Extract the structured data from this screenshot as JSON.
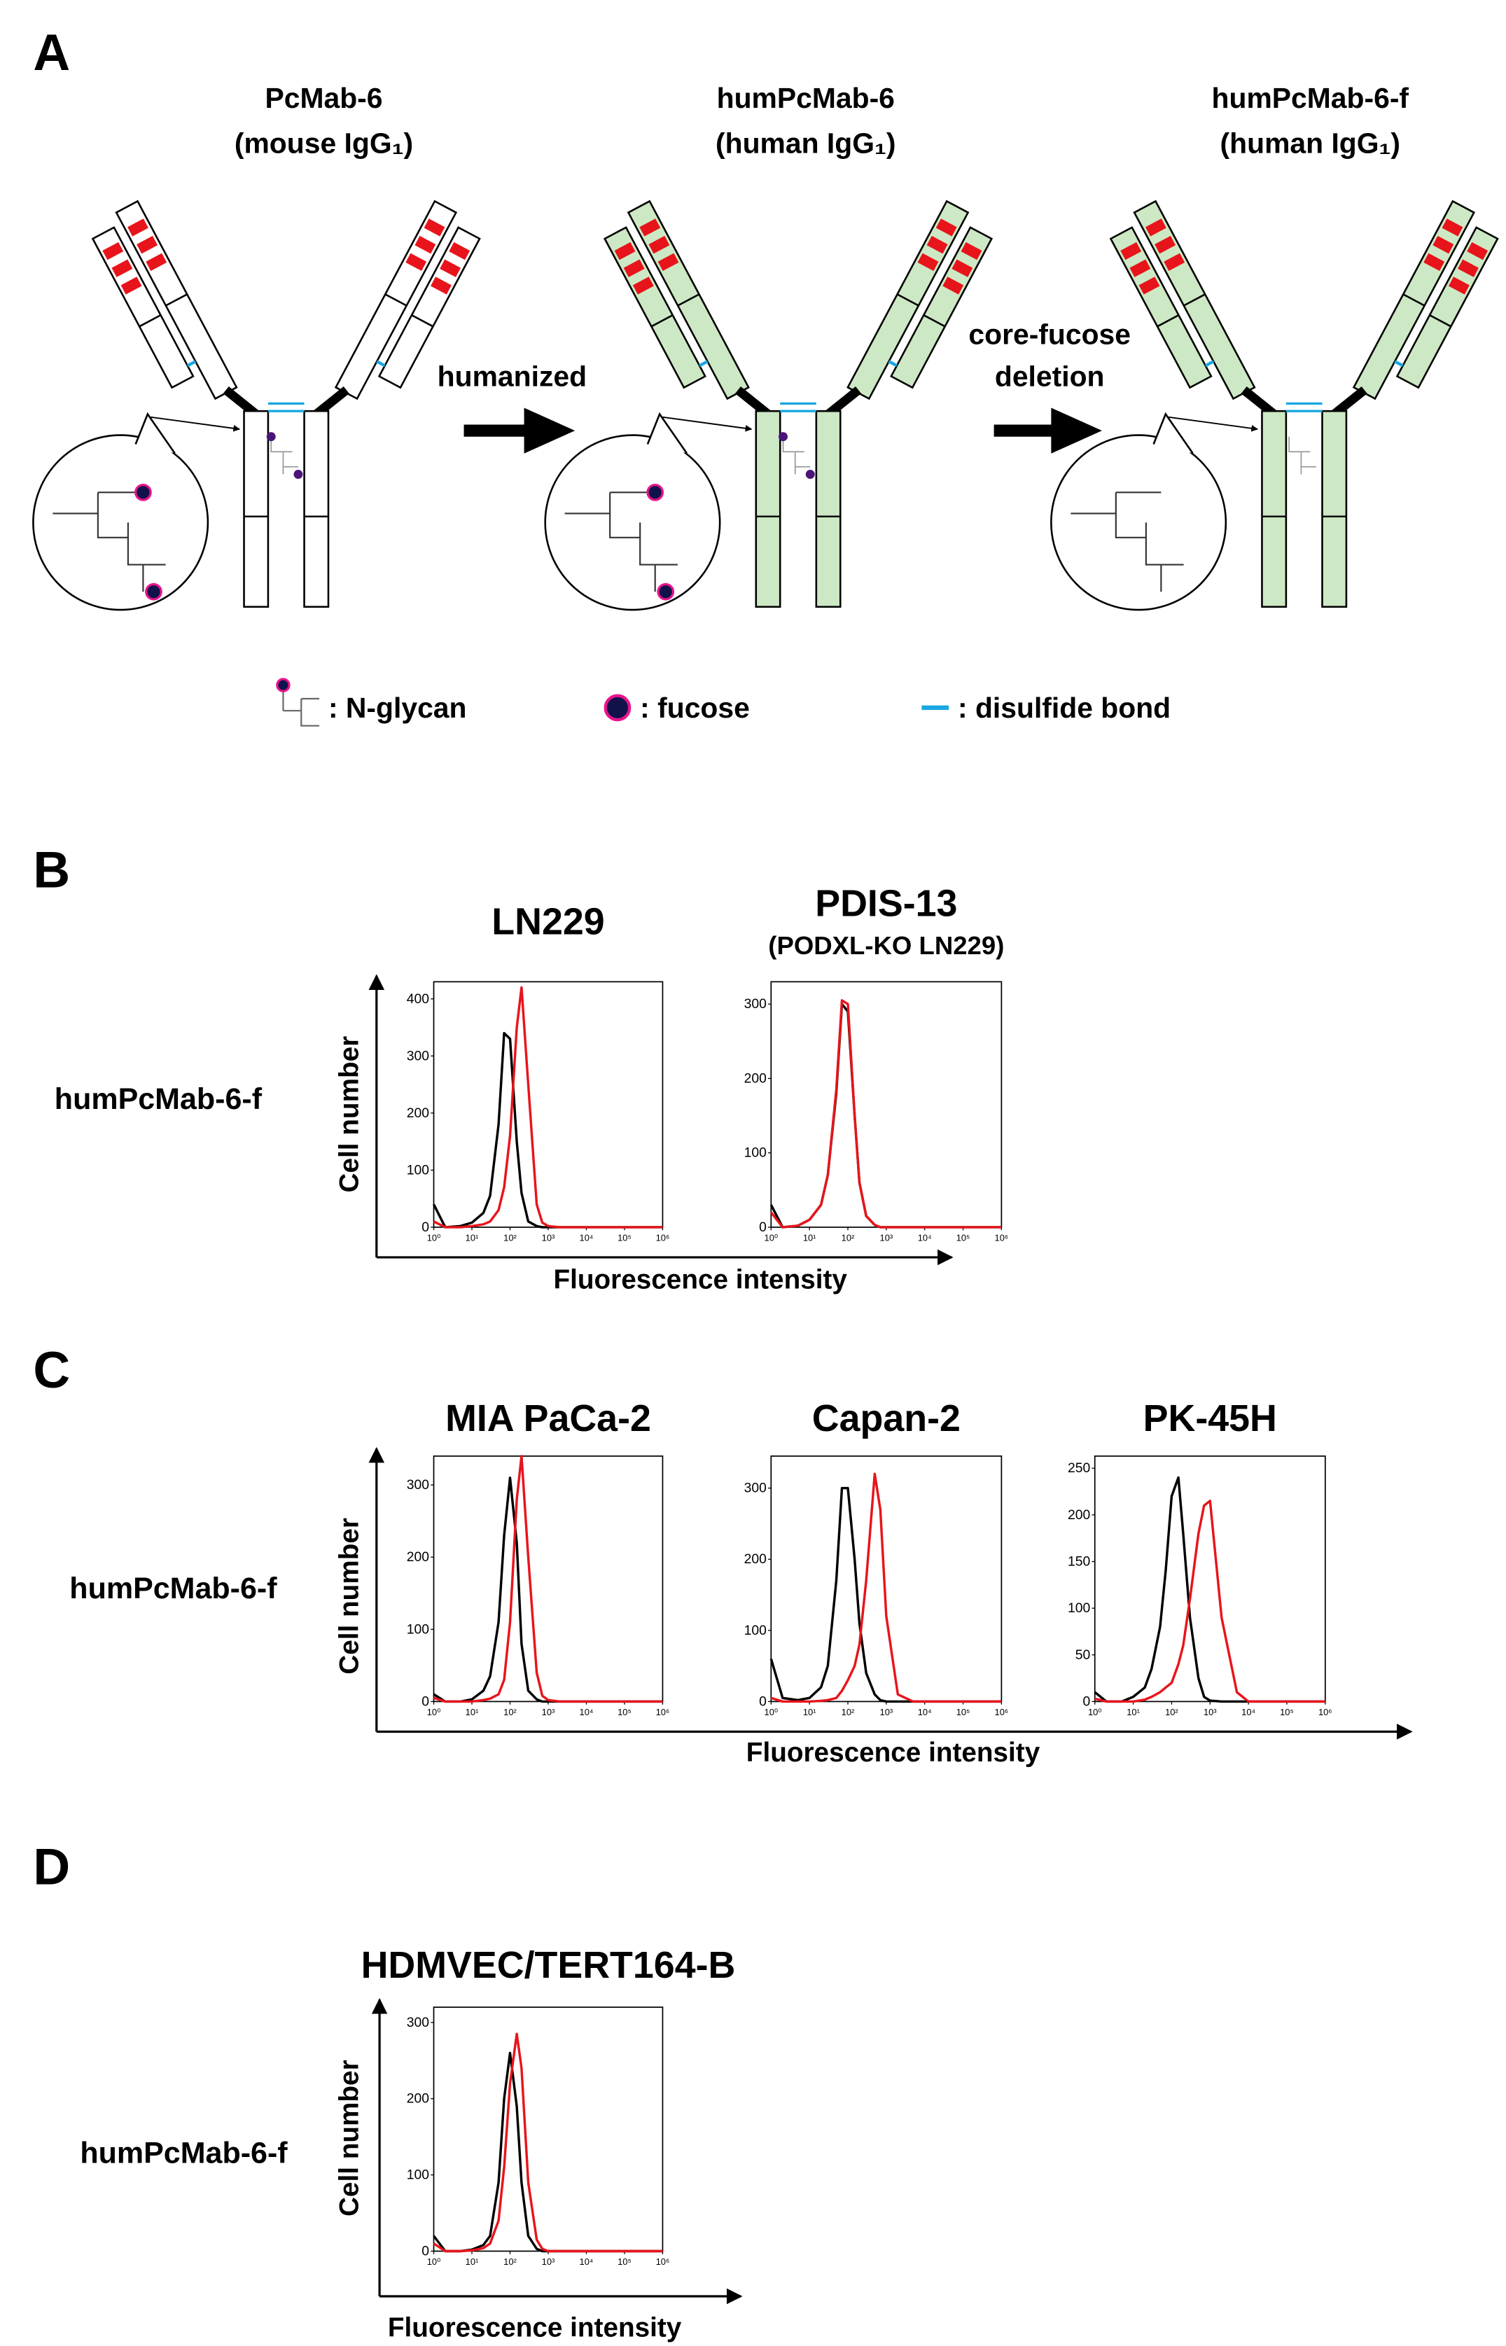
{
  "figure": {
    "label": "A",
    "antibodies": [
      {
        "name": "PcMab-6",
        "type": "(mouse IgG₁)"
      },
      {
        "name": "humPcMab-6",
        "type": "(human IgG₁)"
      },
      {
        "name": "humPcMab-6-f",
        "type": "(human IgG₁)"
      }
    ],
    "steps": [
      {
        "lines": [
          "humanized"
        ]
      },
      {
        "lines": [
          "core-fucose",
          "deletion"
        ]
      }
    ],
    "legend": [
      ": N-glycan",
      ": fucose",
      ": disulfide bond"
    ]
  },
  "panels": [
    {
      "label": "B",
      "row_label": "humPcMab-6-f",
      "y_label": "Cell number",
      "x_label": "Fluorescence intensity"
    },
    {
      "label": "C",
      "row_label": "humPcMab-6-f",
      "y_label": "Cell number",
      "x_label": "Fluorescence intensity"
    },
    {
      "label": "D",
      "row_label": "humPcMab-6-f",
      "y_label": "Cell number",
      "x_label": "Fluorescence intensity"
    }
  ],
  "chart_data": [
    {
      "type": "line",
      "title": "LN229",
      "xscale": "log",
      "x": [
        1,
        2,
        5,
        10,
        20,
        30,
        50,
        70,
        100,
        150,
        200,
        300,
        500,
        700,
        1000,
        2000,
        5000,
        10000,
        100000,
        1000000
      ],
      "xlim": [
        1,
        1000000
      ],
      "xticks": [
        {
          "value": 1,
          "label": "10⁰"
        },
        {
          "value": 10,
          "label": "10¹"
        },
        {
          "value": 100,
          "label": "10²"
        },
        {
          "value": 1000,
          "label": "10³"
        },
        {
          "value": 10000,
          "label": "10⁴"
        },
        {
          "value": 100000,
          "label": "10⁵"
        },
        {
          "value": 1000000,
          "label": "10⁶"
        }
      ],
      "ylim": [
        0,
        430
      ],
      "yticks": [
        0,
        100,
        200,
        300,
        400
      ],
      "series": [
        {
          "color": "#000000",
          "values": [
            40,
            0,
            2,
            8,
            25,
            55,
            180,
            340,
            330,
            150,
            60,
            10,
            2,
            0,
            0,
            0,
            0,
            0,
            0,
            0
          ]
        },
        {
          "color": "#e8141b",
          "values": [
            10,
            0,
            0,
            2,
            5,
            10,
            30,
            70,
            160,
            350,
            420,
            250,
            40,
            8,
            2,
            0,
            0,
            0,
            0,
            0
          ]
        }
      ]
    },
    {
      "type": "line",
      "title": "PDIS-13",
      "subtitle": "(PODXL-KO LN229)",
      "xscale": "log",
      "x": [
        1,
        2,
        5,
        10,
        20,
        30,
        50,
        70,
        100,
        150,
        200,
        300,
        500,
        700,
        1000,
        2000,
        5000,
        10000,
        100000,
        1000000
      ],
      "xlim": [
        1,
        1000000
      ],
      "xticks": [
        {
          "value": 1,
          "label": "10⁰"
        },
        {
          "value": 10,
          "label": "10¹"
        },
        {
          "value": 100,
          "label": "10²"
        },
        {
          "value": 1000,
          "label": "10³"
        },
        {
          "value": 10000,
          "label": "10⁴"
        },
        {
          "value": 100000,
          "label": "10⁵"
        },
        {
          "value": 1000000,
          "label": "10⁶"
        }
      ],
      "ylim": [
        0,
        330
      ],
      "yticks": [
        0,
        100,
        200,
        300
      ],
      "series": [
        {
          "color": "#000000",
          "values": [
            30,
            0,
            2,
            10,
            30,
            70,
            180,
            300,
            290,
            150,
            60,
            15,
            3,
            0,
            0,
            0,
            0,
            0,
            0,
            0
          ]
        },
        {
          "color": "#e8141b",
          "values": [
            20,
            0,
            2,
            10,
            30,
            70,
            185,
            305,
            300,
            150,
            60,
            15,
            3,
            0,
            0,
            0,
            0,
            0,
            0,
            0
          ]
        }
      ]
    },
    {
      "type": "line",
      "title": "MIA PaCa-2",
      "xscale": "log",
      "x": [
        1,
        2,
        5,
        10,
        20,
        30,
        50,
        70,
        100,
        150,
        200,
        300,
        500,
        700,
        1000,
        2000,
        5000,
        10000,
        100000,
        1000000
      ],
      "xlim": [
        1,
        1000000
      ],
      "xticks": [
        {
          "value": 1,
          "label": "10⁰"
        },
        {
          "value": 10,
          "label": "10¹"
        },
        {
          "value": 100,
          "label": "10²"
        },
        {
          "value": 1000,
          "label": "10³"
        },
        {
          "value": 10000,
          "label": "10⁴"
        },
        {
          "value": 100000,
          "label": "10⁵"
        },
        {
          "value": 1000000,
          "label": "10⁶"
        }
      ],
      "ylim": [
        0,
        340
      ],
      "yticks": [
        0,
        100,
        200,
        300
      ],
      "series": [
        {
          "color": "#000000",
          "values": [
            10,
            0,
            0,
            3,
            15,
            35,
            110,
            230,
            310,
            220,
            80,
            15,
            3,
            0,
            0,
            0,
            0,
            0,
            0,
            0
          ]
        },
        {
          "color": "#e8141b",
          "values": [
            5,
            0,
            0,
            0,
            2,
            4,
            10,
            30,
            110,
            280,
            340,
            200,
            40,
            8,
            2,
            0,
            0,
            0,
            0,
            0
          ]
        }
      ]
    },
    {
      "type": "line",
      "title": "Capan-2",
      "xscale": "log",
      "x": [
        1,
        2,
        5,
        10,
        20,
        30,
        50,
        70,
        100,
        150,
        200,
        300,
        500,
        700,
        1000,
        2000,
        5000,
        10000,
        100000,
        1000000
      ],
      "xlim": [
        1,
        1000000
      ],
      "xticks": [
        {
          "value": 1,
          "label": "10⁰"
        },
        {
          "value": 10,
          "label": "10¹"
        },
        {
          "value": 100,
          "label": "10²"
        },
        {
          "value": 1000,
          "label": "10³"
        },
        {
          "value": 10000,
          "label": "10⁴"
        },
        {
          "value": 100000,
          "label": "10⁵"
        },
        {
          "value": 1000000,
          "label": "10⁶"
        }
      ],
      "ylim": [
        0,
        345
      ],
      "yticks": [
        0,
        100,
        200,
        300
      ],
      "series": [
        {
          "color": "#000000",
          "values": [
            60,
            5,
            2,
            5,
            20,
            50,
            170,
            300,
            300,
            200,
            110,
            40,
            10,
            2,
            0,
            0,
            0,
            0,
            0,
            0
          ]
        },
        {
          "color": "#e8141b",
          "values": [
            5,
            0,
            0,
            0,
            1,
            2,
            5,
            15,
            30,
            50,
            80,
            170,
            320,
            270,
            120,
            10,
            0,
            0,
            0,
            0
          ]
        }
      ]
    },
    {
      "type": "line",
      "title": "PK-45H",
      "xscale": "log",
      "x": [
        1,
        2,
        5,
        10,
        20,
        30,
        50,
        70,
        100,
        150,
        200,
        300,
        500,
        700,
        1000,
        2000,
        5000,
        10000,
        100000,
        1000000
      ],
      "xlim": [
        1,
        1000000
      ],
      "xticks": [
        {
          "value": 1,
          "label": "10⁰"
        },
        {
          "value": 10,
          "label": "10¹"
        },
        {
          "value": 100,
          "label": "10²"
        },
        {
          "value": 1000,
          "label": "10³"
        },
        {
          "value": 10000,
          "label": "10⁴"
        },
        {
          "value": 100000,
          "label": "10⁵"
        },
        {
          "value": 1000000,
          "label": "10⁶"
        }
      ],
      "ylim": [
        0,
        263
      ],
      "yticks": [
        0,
        50,
        100,
        150,
        200,
        250
      ],
      "series": [
        {
          "color": "#000000",
          "values": [
            10,
            0,
            0,
            5,
            15,
            35,
            80,
            140,
            220,
            240,
            180,
            90,
            25,
            5,
            1,
            0,
            0,
            0,
            0,
            0
          ]
        },
        {
          "color": "#e8141b",
          "values": [
            3,
            0,
            0,
            0,
            2,
            5,
            10,
            15,
            20,
            40,
            60,
            110,
            180,
            210,
            215,
            90,
            10,
            0,
            0,
            0
          ]
        }
      ]
    },
    {
      "type": "line",
      "title": "HDMVEC/TERT164-B",
      "xscale": "log",
      "x": [
        1,
        2,
        5,
        10,
        20,
        30,
        50,
        70,
        100,
        150,
        200,
        300,
        500,
        700,
        1000,
        2000,
        5000,
        10000,
        100000,
        1000000
      ],
      "xlim": [
        1,
        1000000
      ],
      "xticks": [
        {
          "value": 1,
          "label": "10⁰"
        },
        {
          "value": 10,
          "label": "10¹"
        },
        {
          "value": 100,
          "label": "10²"
        },
        {
          "value": 1000,
          "label": "10³"
        },
        {
          "value": 10000,
          "label": "10⁴"
        },
        {
          "value": 100000,
          "label": "10⁵"
        },
        {
          "value": 1000000,
          "label": "10⁶"
        }
      ],
      "ylim": [
        0,
        320
      ],
      "yticks": [
        0,
        100,
        200,
        300
      ],
      "series": [
        {
          "color": "#000000",
          "values": [
            20,
            0,
            0,
            2,
            8,
            20,
            90,
            200,
            260,
            190,
            90,
            20,
            3,
            0,
            0,
            0,
            0,
            0,
            0,
            0
          ]
        },
        {
          "color": "#e8141b",
          "values": [
            10,
            0,
            0,
            1,
            4,
            10,
            40,
            110,
            220,
            285,
            240,
            90,
            15,
            3,
            0,
            0,
            0,
            0,
            0,
            0
          ]
        }
      ]
    }
  ]
}
